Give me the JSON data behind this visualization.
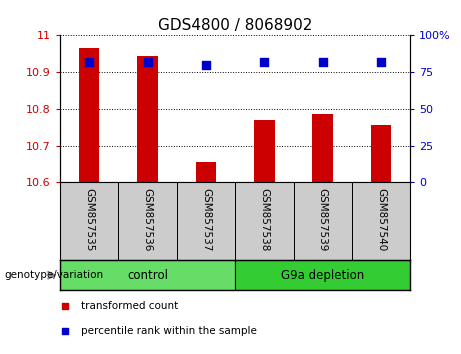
{
  "title": "GDS4800 / 8068902",
  "categories": [
    "GSM857535",
    "GSM857536",
    "GSM857537",
    "GSM857538",
    "GSM857539",
    "GSM857540"
  ],
  "red_values": [
    10.965,
    10.945,
    10.655,
    10.77,
    10.785,
    10.755
  ],
  "blue_values": [
    82,
    82,
    80,
    82,
    82,
    82
  ],
  "ylim_left": [
    10.6,
    11.0
  ],
  "ylim_right": [
    0,
    100
  ],
  "yticks_left": [
    10.6,
    10.7,
    10.8,
    10.9,
    11.0
  ],
  "yticks_right": [
    0,
    25,
    50,
    75,
    100
  ],
  "red_color": "#cc0000",
  "blue_color": "#0000cc",
  "bar_width": 0.35,
  "groups": [
    {
      "label": "control",
      "indices": [
        0,
        1,
        2
      ],
      "color": "#66dd66"
    },
    {
      "label": "G9a depletion",
      "indices": [
        3,
        4,
        5
      ],
      "color": "#33cc33"
    }
  ],
  "sample_label_bg": "#cccccc",
  "legend_items": [
    {
      "label": "transformed count",
      "color": "#cc0000"
    },
    {
      "label": "percentile rank within the sample",
      "color": "#0000cc"
    }
  ],
  "genotype_label": "genotype/variation",
  "left_axis_color": "#cc0000",
  "right_axis_color": "#0000cc",
  "plot_bg": "#ffffff",
  "grid_color": "#000000",
  "tick_label_fontsize": 8,
  "title_fontsize": 11,
  "ytick_left_labels": [
    "10.6",
    "10.7",
    "10.8",
    "10.9",
    "11"
  ],
  "ytick_right_labels": [
    "0",
    "25",
    "50",
    "75",
    "100%"
  ]
}
